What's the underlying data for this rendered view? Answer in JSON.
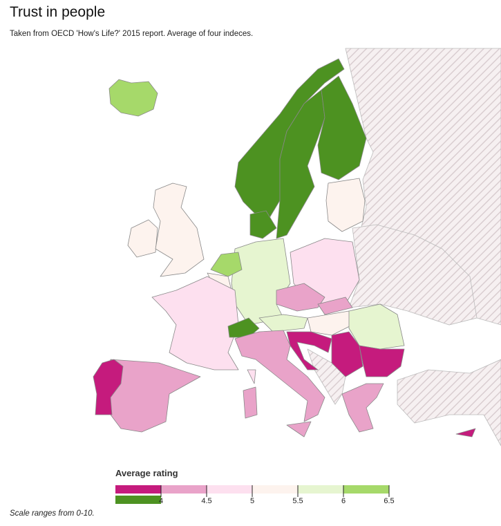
{
  "title": "Trust in people",
  "subtitle": "Taken from OECD 'How's Life?' 2015 report. Average of four indeces.",
  "legend": {
    "title": "Average rating",
    "colors": [
      "#c51b7d",
      "#e9a3c9",
      "#fde0ef",
      "#fdf3ee",
      "#e6f5d0",
      "#a6d96a"
    ],
    "extra_color": "#4d9221",
    "ticks": [
      4,
      4.5,
      5,
      5.5,
      6,
      6.5
    ]
  },
  "footnote": "Scale ranges from 0-10."
}
